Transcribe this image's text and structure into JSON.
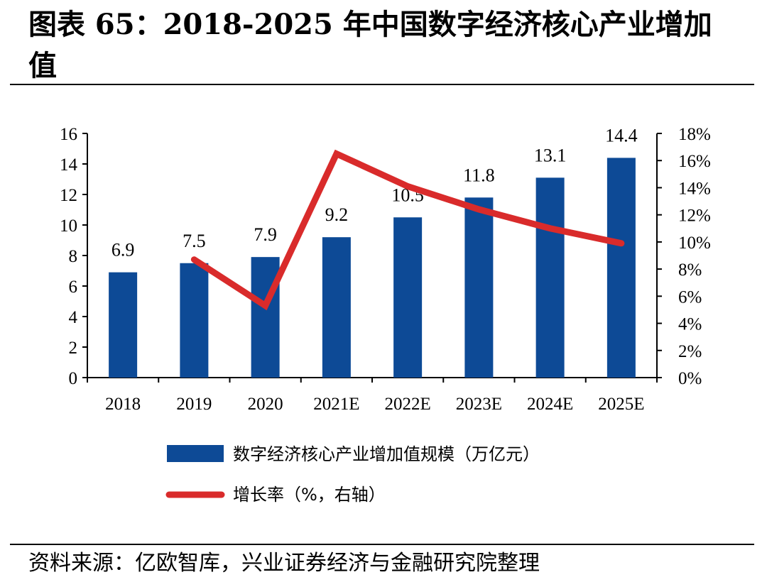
{
  "figure": {
    "title": "图表 65：2018-2025 年中国数字经济核心产业增加值",
    "source": "资料来源：亿欧智库，兴业证券经济与金融研究院整理"
  },
  "chart_data": {
    "type": "bar",
    "title": "图表 65：2018-2025 年中国数字经济核心产业增加值",
    "categories": [
      "2018",
      "2019",
      "2020",
      "2021E",
      "2022E",
      "2023E",
      "2024E",
      "2025E"
    ],
    "series": [
      {
        "name": "数字经济核心产业增加值规模（万亿元）",
        "type": "bar",
        "axis": "left",
        "color": "#0d4a96",
        "values": [
          6.9,
          7.5,
          7.9,
          9.2,
          10.5,
          11.8,
          13.1,
          14.4
        ],
        "labels": [
          "6.9",
          "7.5",
          "7.9",
          "9.2",
          "10.5",
          "11.8",
          "13.1",
          "14.4"
        ]
      },
      {
        "name": "增长率（%，右轴）",
        "type": "line",
        "axis": "right",
        "color": "#d92b2b",
        "values": [
          null,
          8.7,
          5.3,
          16.5,
          14.1,
          12.4,
          11.0,
          9.9
        ]
      }
    ],
    "left_axis": {
      "min": 0,
      "max": 16,
      "step": 2,
      "ticks": [
        "0",
        "2",
        "4",
        "6",
        "8",
        "10",
        "12",
        "14",
        "16"
      ]
    },
    "right_axis": {
      "min": 0,
      "max": 18,
      "step": 2,
      "ticks": [
        "0%",
        "2%",
        "4%",
        "6%",
        "8%",
        "10%",
        "12%",
        "14%",
        "16%",
        "18%"
      ]
    },
    "grid": false,
    "legend_position": "bottom"
  }
}
